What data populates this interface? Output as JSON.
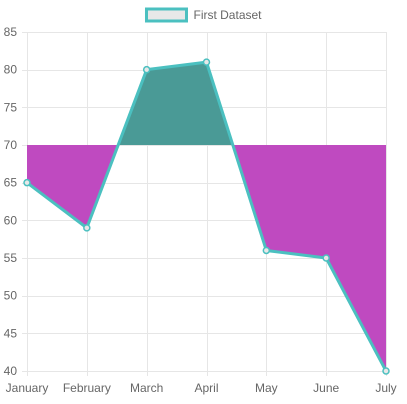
{
  "chart_data": {
    "type": "area",
    "categories": [
      "January",
      "February",
      "March",
      "April",
      "May",
      "June",
      "July"
    ],
    "series": [
      {
        "name": "First Dataset",
        "values": [
          65,
          59,
          80,
          81,
          56,
          55,
          40
        ]
      }
    ],
    "fill_baseline": 70,
    "fill_above_color": "#4a9a96",
    "fill_below_color": "#bf4ac0",
    "line_color": "#4bc0c0",
    "point_fill_color": "#e8e8e8",
    "legend_swatch_fill": "#e8e8e8",
    "ylim": [
      40,
      85
    ],
    "y_ticks": [
      40,
      45,
      50,
      55,
      60,
      65,
      70,
      75,
      80,
      85
    ],
    "grid": true,
    "grid_color": "#e6e6e6",
    "tick_label_color": "#666666",
    "legend_position": "top-center",
    "xlabel": "",
    "ylabel": ""
  }
}
